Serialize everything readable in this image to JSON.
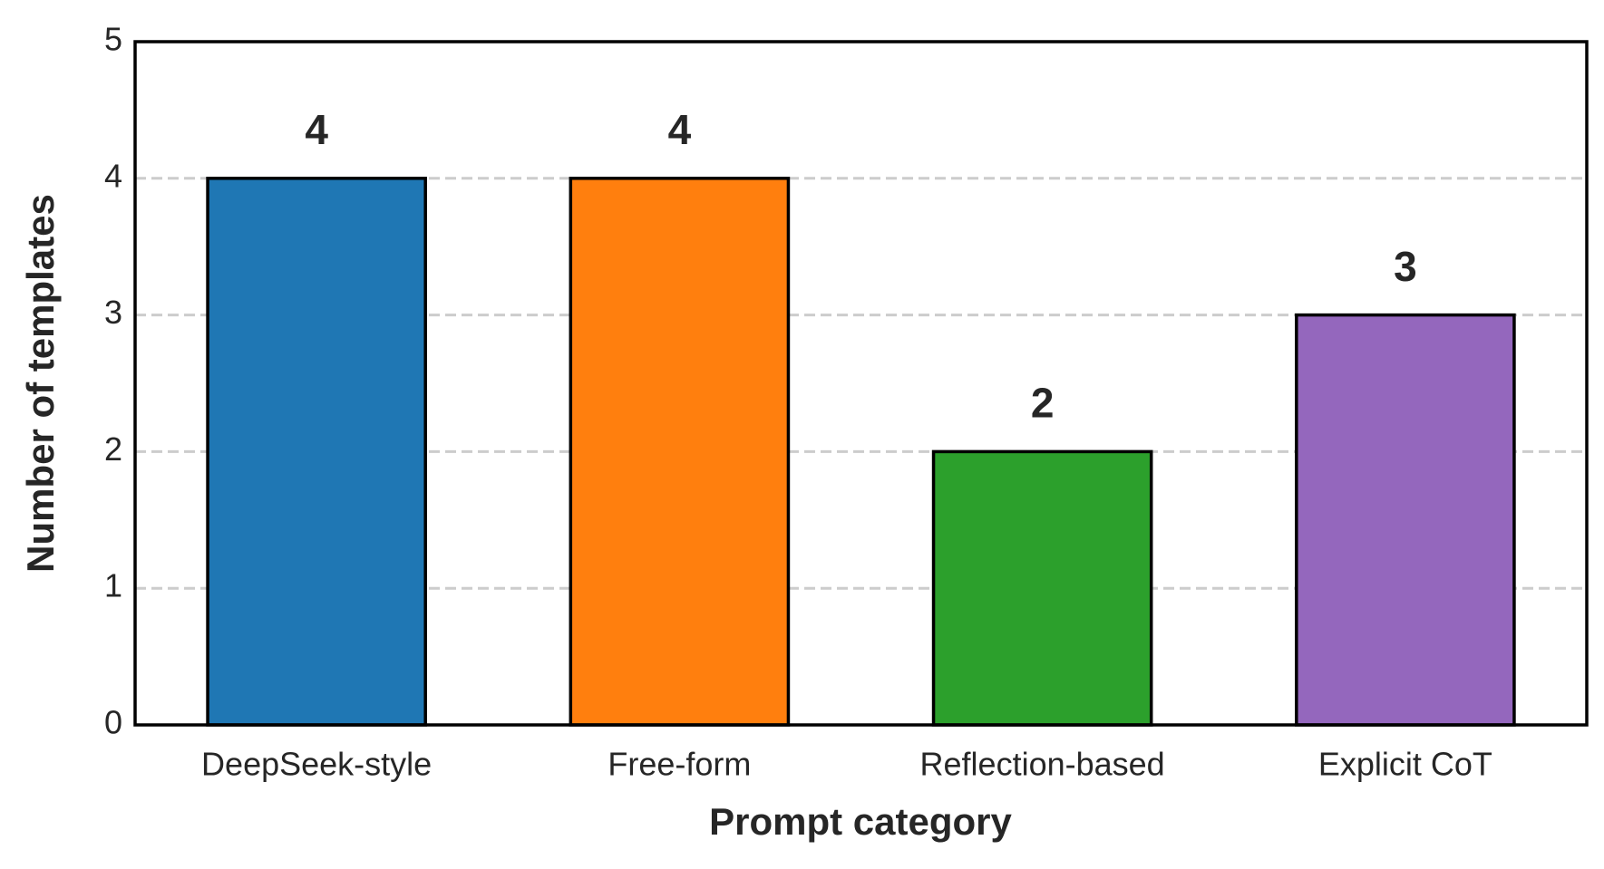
{
  "chart_data": {
    "type": "bar",
    "x_label": "Prompt category",
    "y_label": "Number of templates",
    "categories": [
      "DeepSeek-style",
      "Free-form",
      "Reflection-based",
      "Explicit CoT"
    ],
    "values": [
      4,
      4,
      2,
      3
    ],
    "colors": [
      "#1f77b4",
      "#ff7f0e",
      "#2ca02c",
      "#9467bd"
    ],
    "ylim": [
      0,
      5
    ],
    "yticks": [
      0,
      1,
      2,
      3,
      4,
      5
    ],
    "grid": true
  }
}
